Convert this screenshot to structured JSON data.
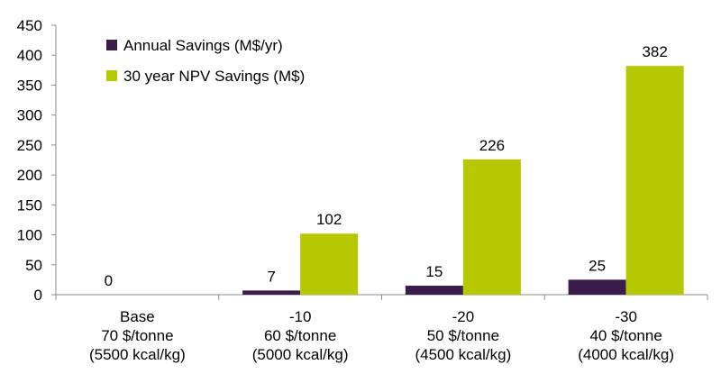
{
  "chart_data": {
    "type": "bar",
    "categories": [
      [
        "Base",
        "70 $/tonne",
        "(5500 kcal/kg)"
      ],
      [
        "-10",
        "60 $/tonne",
        "(5000 kcal/kg)"
      ],
      [
        "-20",
        "50 $/tonne",
        "(4500 kcal/kg)"
      ],
      [
        "-30",
        "40 $/tonne",
        "(4000 kcal/kg)"
      ]
    ],
    "series": [
      {
        "name": "Annual Savings (M$/yr)",
        "color": "#3b1c4a",
        "values": [
          0,
          7,
          15,
          25
        ],
        "labels": [
          "0",
          "7",
          "15",
          "25"
        ]
      },
      {
        "name": "30 year NPV Savings (M$)",
        "color": "#b5c800",
        "values": [
          0,
          102,
          226,
          382
        ],
        "labels": [
          "",
          "102",
          "226",
          "382"
        ]
      }
    ],
    "ylim": [
      0,
      450
    ],
    "yticks": [
      "0",
      "50",
      "100",
      "150",
      "200",
      "250",
      "300",
      "350",
      "400",
      "450"
    ],
    "title": "",
    "xlabel": "",
    "ylabel": "",
    "grid": false,
    "legend_position": "top-left"
  }
}
